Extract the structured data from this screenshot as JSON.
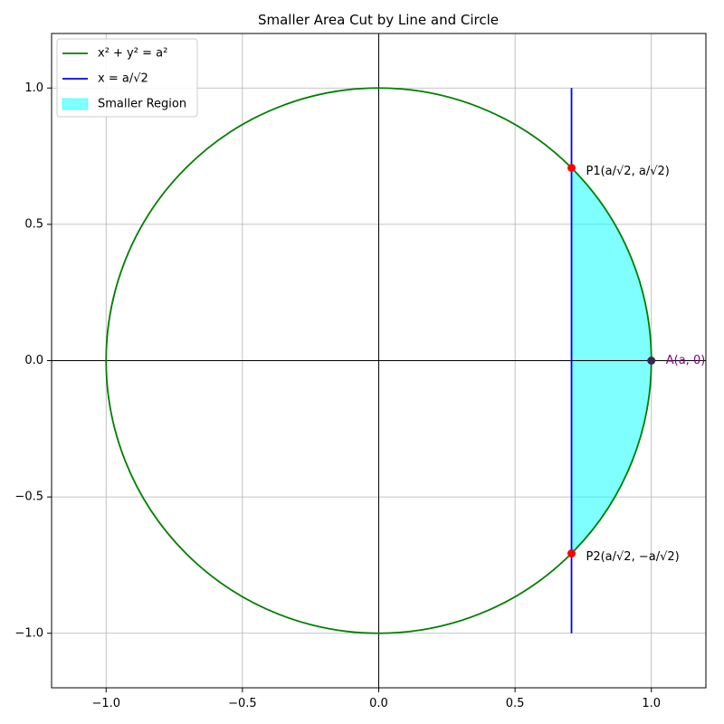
{
  "chart_data": {
    "type": "line",
    "title": "Smaller Area Cut by Line and Circle",
    "xlabel": "",
    "ylabel": "",
    "xlim": [
      -1.2,
      1.2
    ],
    "ylim": [
      -1.2,
      1.2
    ],
    "grid": true,
    "legend_placement": "top-left",
    "x_ticks": [
      -1.0,
      -0.5,
      0.0,
      0.5,
      1.0
    ],
    "x_tick_labels": [
      "−1.0",
      "−0.5",
      "0.0",
      "0.5",
      "1.0"
    ],
    "y_ticks": [
      -1.0,
      -0.5,
      0.0,
      0.5,
      1.0
    ],
    "y_tick_labels": [
      "−1.0",
      "−0.5",
      "0.0",
      "0.5",
      "1.0"
    ],
    "series": [
      {
        "name": "x² + y² = a²",
        "kind": "circle",
        "radius": 1.0,
        "color": "#008000"
      },
      {
        "name": "x = a/√2",
        "kind": "vline",
        "x": 0.7071,
        "y_range": [
          -1.0,
          1.0
        ],
        "color": "#0000ff"
      },
      {
        "name": "Smaller Region",
        "kind": "fill",
        "between_x": [
          0.7071,
          1.0
        ],
        "color": "#00ffff",
        "opacity": 0.5
      }
    ],
    "points": [
      {
        "label": "P1(a/√2, a/√2)",
        "x": 0.7071,
        "y": 0.7071,
        "color": "#ff0000",
        "label_color": "#000000"
      },
      {
        "label": "P2(a/√2, −a/√2)",
        "x": 0.7071,
        "y": -0.7071,
        "color": "#ff0000",
        "label_color": "#000000"
      },
      {
        "label": "A(a, 0)",
        "x": 1.0,
        "y": 0.0,
        "color": "#3a2a4a",
        "label_color": "#800080"
      }
    ],
    "axes_lines": {
      "x_axis_at": 0,
      "y_axis_at": 0,
      "color": "#000000"
    }
  }
}
